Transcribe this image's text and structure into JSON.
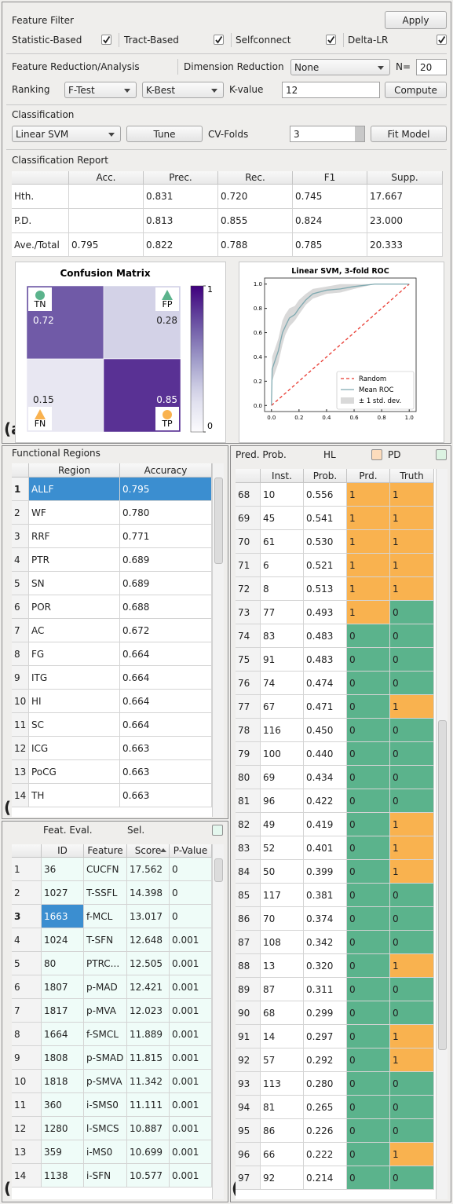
{
  "panel_labels": [
    "(a)",
    "(b)",
    "(c)",
    "(d)"
  ],
  "feature_filter": {
    "title": "Feature Filter",
    "apply": "Apply",
    "checkboxes": [
      {
        "label": "Statistic-Based",
        "checked": true
      },
      {
        "label": "Tract-Based",
        "checked": true
      },
      {
        "label": "Selfconnect",
        "checked": true
      },
      {
        "label": "Delta-LR",
        "checked": true
      }
    ]
  },
  "reduction": {
    "title": "Feature Reduction/Analysis",
    "dimension_label": "Dimension Reduction",
    "dimension_value": "None",
    "n_label": "N=",
    "n_value": "20",
    "ranking_label": "Ranking",
    "ranking_method": "F-Test",
    "ranking_selector": "K-Best",
    "k_label": "K-value",
    "k_value": "12",
    "compute": "Compute"
  },
  "classification": {
    "title": "Classification",
    "classifier": "Linear SVM",
    "tune": "Tune",
    "cv_label": "CV-Folds",
    "cv_value": "3",
    "fit": "Fit Model"
  },
  "report": {
    "title": "Classification Report",
    "columns": [
      "Acc.",
      "Prec.",
      "Rec.",
      "F1",
      "Supp."
    ],
    "rows": [
      {
        "label": "Hth.",
        "cells": [
          null,
          "0.831",
          "0.720",
          "0.745",
          "17.667"
        ]
      },
      {
        "label": "P.D.",
        "cells": [
          null,
          "0.813",
          "0.855",
          "0.824",
          "23.000"
        ]
      },
      {
        "label": "Ave./Total",
        "cells": [
          "0.795",
          "0.822",
          "0.788",
          "0.785",
          "20.333"
        ]
      }
    ]
  },
  "chart_data": [
    {
      "type": "heatmap",
      "title": "Confusion Matrix",
      "labels": [
        [
          "TN",
          "FP"
        ],
        [
          "FN",
          "TP"
        ]
      ],
      "values": [
        [
          0.72,
          0.28
        ],
        [
          0.15,
          0.85
        ]
      ],
      "clim": [
        0,
        1
      ],
      "cticks": [
        0,
        1
      ],
      "colormap": "Purples"
    },
    {
      "type": "line",
      "title": "Linear SVM, 3-fold ROC",
      "xlim": [
        -0.05,
        1.05
      ],
      "ylim": [
        -0.05,
        1.05
      ],
      "xticks": [
        {
          "value": 0,
          "label": "0.0"
        },
        {
          "value": 0.2,
          "label": "0.2"
        },
        {
          "value": 0.4,
          "label": "0.4"
        },
        {
          "value": 0.6,
          "label": "0.6"
        },
        {
          "value": 0.8,
          "label": "0.8"
        },
        {
          "value": 1,
          "label": "1.0"
        }
      ],
      "yticks": [
        {
          "value": 0,
          "label": "0.0"
        },
        {
          "value": 0.2,
          "label": "0.2"
        },
        {
          "value": 0.4,
          "label": "0.4"
        },
        {
          "value": 0.6,
          "label": "0.6"
        },
        {
          "value": 0.8,
          "label": "0.8"
        },
        {
          "value": 1,
          "label": "1.0"
        }
      ],
      "x": [
        0,
        0.005,
        0.05,
        0.08,
        0.1,
        0.13,
        0.17,
        0.2,
        0.25,
        0.3,
        0.4,
        0.5,
        0.6,
        0.75,
        0.9,
        1
      ],
      "series": [
        {
          "name": "Random",
          "color": "#e8382f",
          "dashed": true,
          "values": [
            0,
            0.005,
            0.05,
            0.08,
            0.1,
            0.13,
            0.17,
            0.2,
            0.25,
            0.3,
            0.4,
            0.5,
            0.6,
            0.75,
            0.9,
            1
          ]
        },
        {
          "name": "Mean ROC",
          "color": "#7fa9b0",
          "dashed": false,
          "values": [
            0,
            0.3,
            0.45,
            0.6,
            0.65,
            0.72,
            0.75,
            0.8,
            0.87,
            0.92,
            0.95,
            0.96,
            0.98,
            1,
            1,
            1
          ]
        }
      ],
      "band": {
        "name": "± 1 std. dev.",
        "color": "#d9d9d9",
        "lower": [
          0,
          0.2,
          0.35,
          0.5,
          0.58,
          0.65,
          0.7,
          0.75,
          0.83,
          0.88,
          0.92,
          0.93,
          0.96,
          1,
          1,
          1
        ],
        "upper": [
          0,
          0.4,
          0.55,
          0.7,
          0.75,
          0.8,
          0.82,
          0.87,
          0.92,
          0.96,
          0.98,
          1,
          1,
          1,
          1,
          1
        ]
      },
      "legend": "lower right"
    }
  ],
  "regions": {
    "title": "Functional Regions",
    "columns": [
      "Region",
      "Accuracy"
    ],
    "selected": 0,
    "rows": [
      [
        "1",
        "ALLF",
        "0.795"
      ],
      [
        "2",
        "WF",
        "0.780"
      ],
      [
        "3",
        "RRF",
        "0.771"
      ],
      [
        "4",
        "PTR",
        "0.689"
      ],
      [
        "5",
        "SN",
        "0.689"
      ],
      [
        "6",
        "POR",
        "0.688"
      ],
      [
        "7",
        "AC",
        "0.672"
      ],
      [
        "8",
        "FG",
        "0.664"
      ],
      [
        "9",
        "ITG",
        "0.664"
      ],
      [
        "10",
        "HI",
        "0.664"
      ],
      [
        "11",
        "SC",
        "0.664"
      ],
      [
        "12",
        "ICG",
        "0.663"
      ],
      [
        "13",
        "PoCG",
        "0.663"
      ],
      [
        "14",
        "TH",
        "0.663"
      ]
    ]
  },
  "features": {
    "title": "Feat. Eval.",
    "sel_label": "Sel.",
    "columns": [
      "ID",
      "Feature",
      "Score",
      "P-Value"
    ],
    "sort_column": 2,
    "selected": 2,
    "rows": [
      [
        "1",
        "36",
        "CUCFN",
        "17.562",
        "0"
      ],
      [
        "2",
        "1027",
        "T-SSFL",
        "14.398",
        "0"
      ],
      [
        "3",
        "1663",
        "f-MCL",
        "13.017",
        "0"
      ],
      [
        "4",
        "1024",
        "T-SFN",
        "12.648",
        "0.001"
      ],
      [
        "5",
        "80",
        "PTRC...",
        "12.505",
        "0.001"
      ],
      [
        "6",
        "1807",
        "p-MAD",
        "12.421",
        "0.001"
      ],
      [
        "7",
        "1817",
        "p-MVA",
        "12.023",
        "0.001"
      ],
      [
        "8",
        "1664",
        "f-SMCL",
        "11.889",
        "0.001"
      ],
      [
        "9",
        "1808",
        "p-SMAD",
        "11.815",
        "0.001"
      ],
      [
        "10",
        "1818",
        "p-SMVA",
        "11.342",
        "0.001"
      ],
      [
        "11",
        "360",
        "i-SMS0",
        "11.111",
        "0.001"
      ],
      [
        "12",
        "1280",
        "l-SMCS",
        "10.887",
        "0.001"
      ],
      [
        "13",
        "359",
        "i-MS0",
        "10.699",
        "0.001"
      ],
      [
        "14",
        "1138",
        "i-SFN",
        "10.577",
        "0.001"
      ]
    ]
  },
  "predictions": {
    "title": "Pred. Prob.",
    "legend": [
      {
        "name": "HL",
        "color": "#fcdcbc"
      },
      {
        "name": "PD",
        "color": "#dcf3e2"
      }
    ],
    "class_colors": {
      "0": "#5bb38c",
      "1": "#f9b24f"
    },
    "columns": [
      "Inst.",
      "Prob.",
      "Prd.",
      "Truth"
    ],
    "rows": [
      [
        "68",
        "10",
        "0.556",
        "1",
        "1"
      ],
      [
        "69",
        "45",
        "0.541",
        "1",
        "1"
      ],
      [
        "70",
        "61",
        "0.530",
        "1",
        "1"
      ],
      [
        "71",
        "6",
        "0.521",
        "1",
        "1"
      ],
      [
        "72",
        "8",
        "0.513",
        "1",
        "1"
      ],
      [
        "73",
        "77",
        "0.493",
        "1",
        "0"
      ],
      [
        "74",
        "83",
        "0.483",
        "0",
        "0"
      ],
      [
        "75",
        "91",
        "0.483",
        "0",
        "0"
      ],
      [
        "76",
        "74",
        "0.474",
        "0",
        "0"
      ],
      [
        "77",
        "67",
        "0.471",
        "0",
        "1"
      ],
      [
        "78",
        "116",
        "0.450",
        "0",
        "0"
      ],
      [
        "79",
        "100",
        "0.440",
        "0",
        "0"
      ],
      [
        "80",
        "69",
        "0.434",
        "0",
        "0"
      ],
      [
        "81",
        "96",
        "0.422",
        "0",
        "0"
      ],
      [
        "82",
        "49",
        "0.419",
        "0",
        "1"
      ],
      [
        "83",
        "52",
        "0.401",
        "0",
        "1"
      ],
      [
        "84",
        "50",
        "0.399",
        "0",
        "1"
      ],
      [
        "85",
        "117",
        "0.381",
        "0",
        "0"
      ],
      [
        "86",
        "70",
        "0.374",
        "0",
        "0"
      ],
      [
        "87",
        "108",
        "0.342",
        "0",
        "0"
      ],
      [
        "88",
        "13",
        "0.320",
        "0",
        "1"
      ],
      [
        "89",
        "87",
        "0.311",
        "0",
        "0"
      ],
      [
        "90",
        "68",
        "0.299",
        "0",
        "0"
      ],
      [
        "91",
        "14",
        "0.297",
        "0",
        "1"
      ],
      [
        "92",
        "57",
        "0.292",
        "0",
        "1"
      ],
      [
        "93",
        "113",
        "0.280",
        "0",
        "0"
      ],
      [
        "94",
        "81",
        "0.265",
        "0",
        "0"
      ],
      [
        "95",
        "86",
        "0.226",
        "0",
        "0"
      ],
      [
        "96",
        "66",
        "0.222",
        "0",
        "1"
      ],
      [
        "97",
        "92",
        "0.214",
        "0",
        "0"
      ]
    ]
  }
}
